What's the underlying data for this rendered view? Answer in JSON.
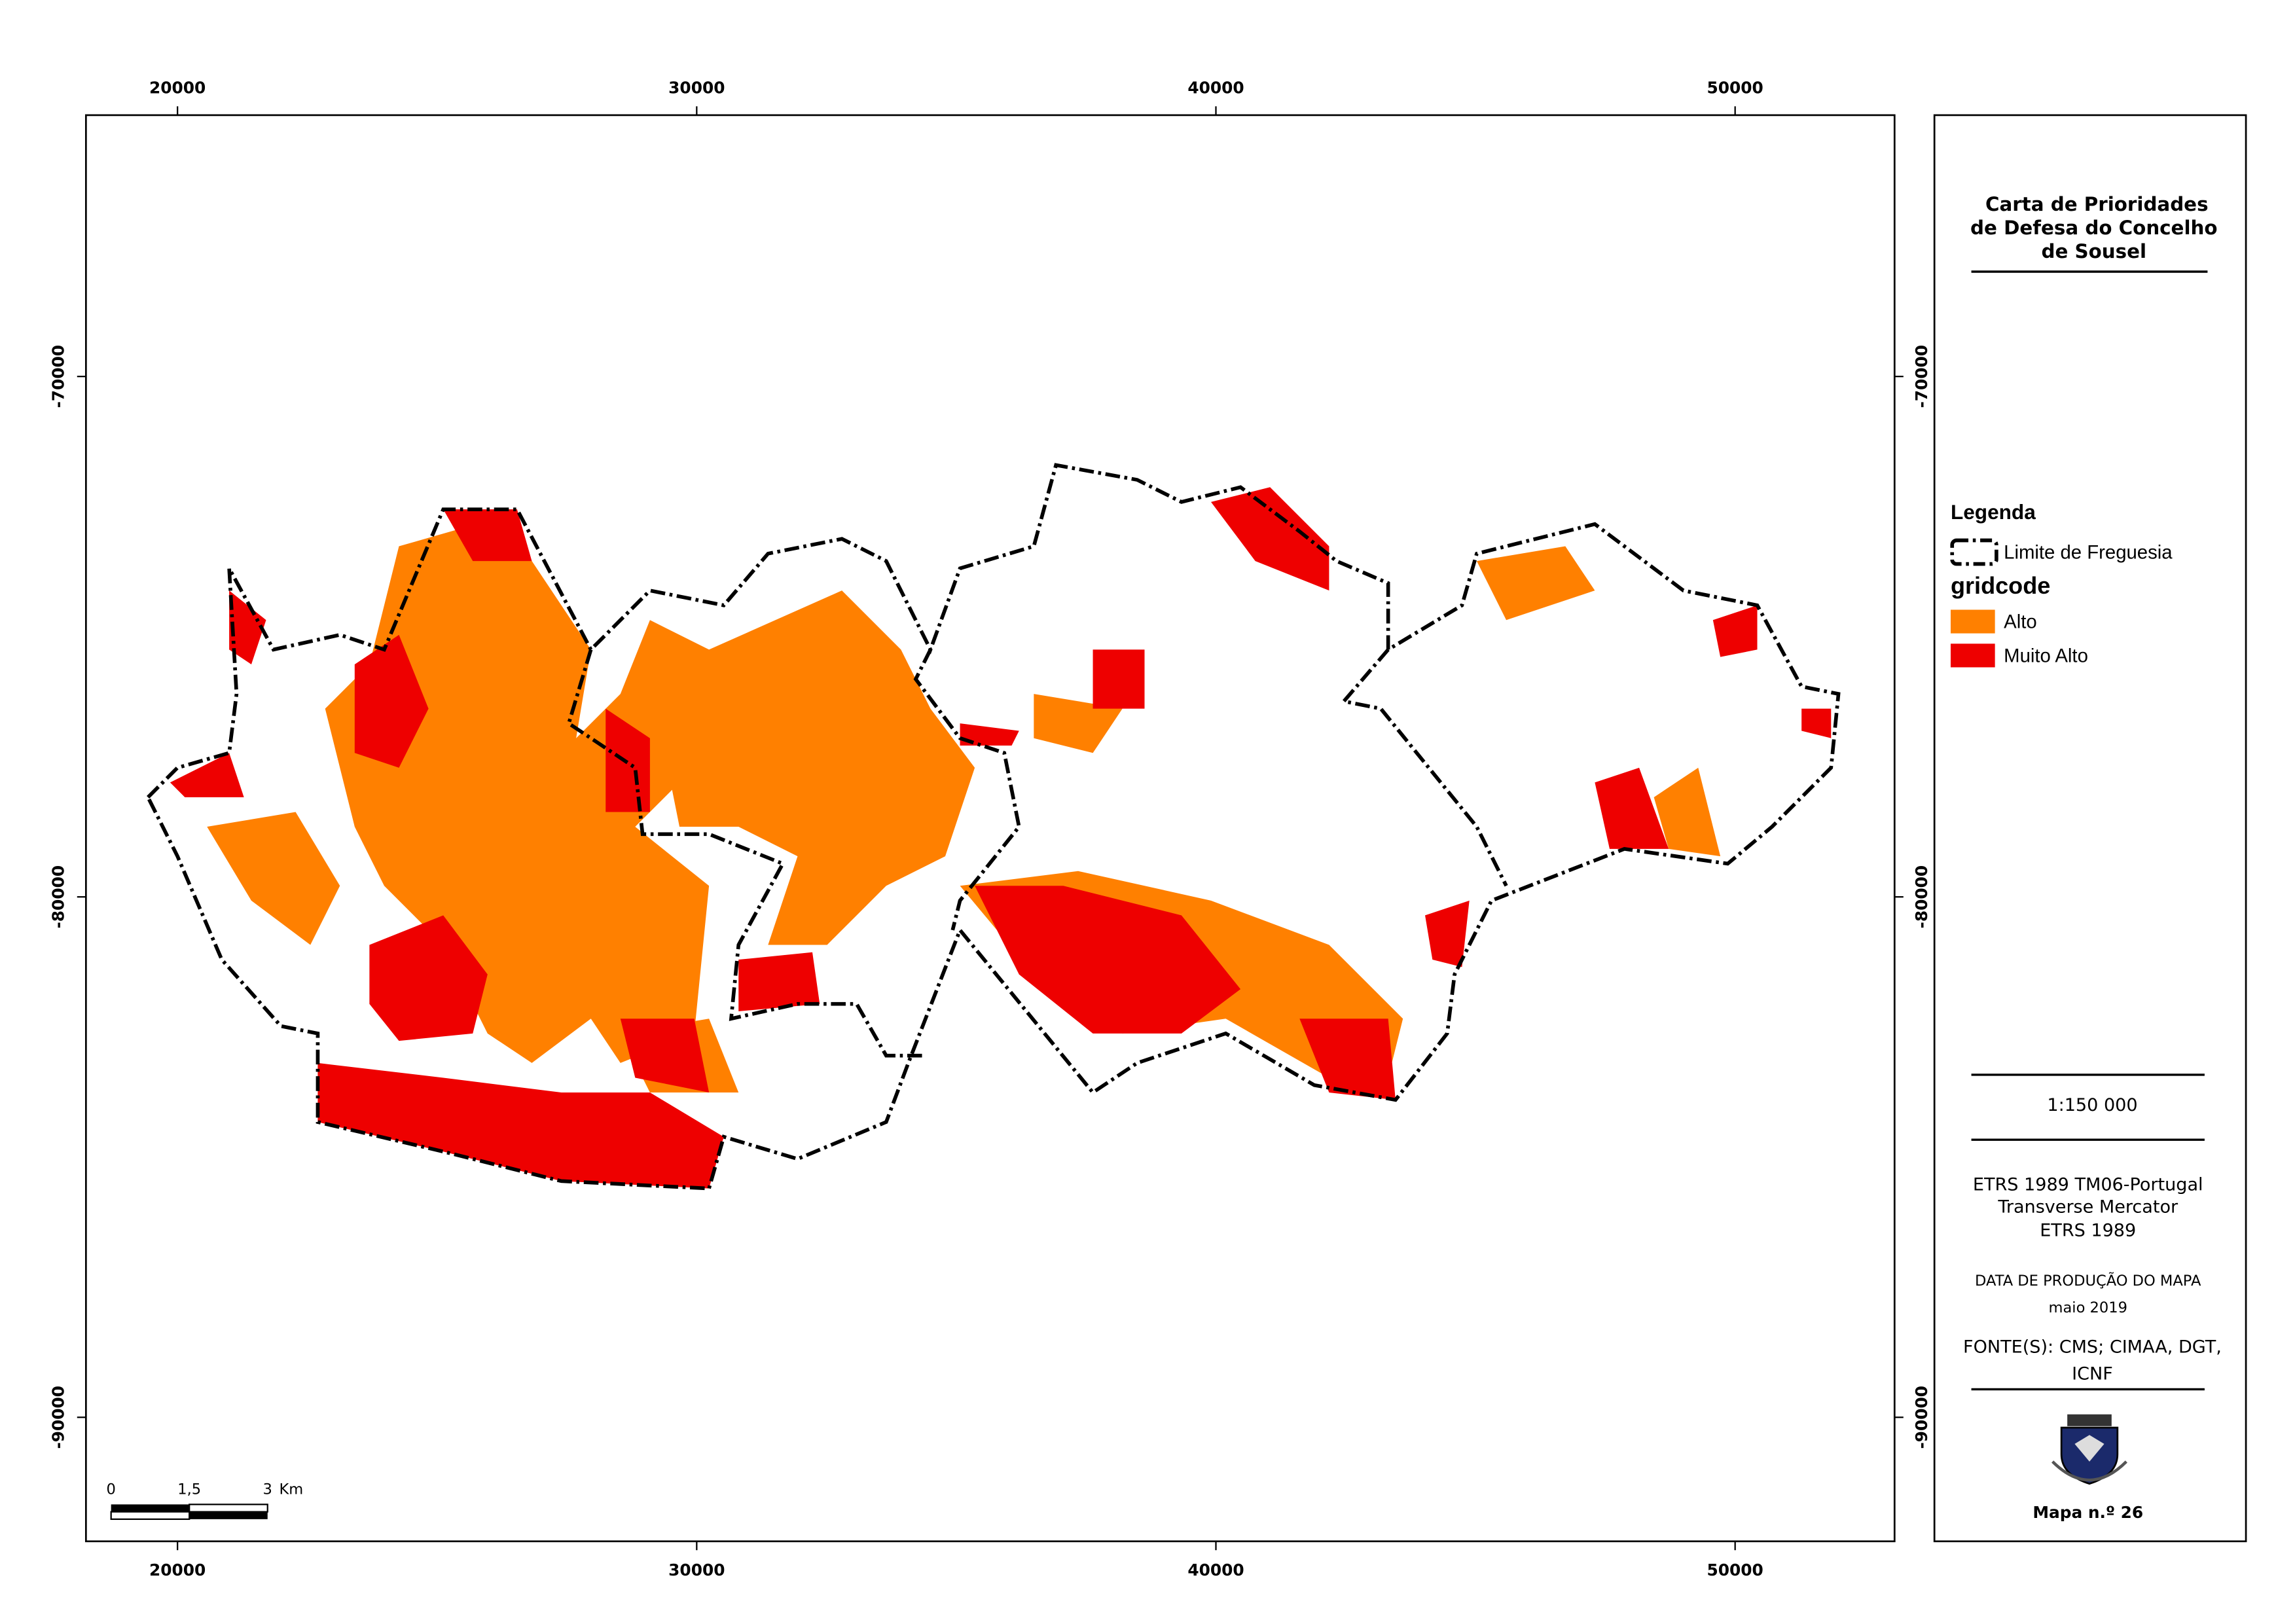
{
  "map": {
    "x_ticks": [
      20000,
      30000,
      40000,
      50000
    ],
    "y_ticks": [
      -70000,
      -80000,
      -90000
    ],
    "scale_bar": {
      "labels": [
        "0",
        "1,5",
        "3"
      ],
      "unit": "Km"
    }
  },
  "panel": {
    "title": [
      "Carta de Prioridades",
      "de Defesa do Concelho",
      "de Sousel"
    ],
    "legend": {
      "heading": "Legenda",
      "boundary": "Limite de Freguesia",
      "field": "gridcode",
      "classes": [
        {
          "label": "Alto",
          "color": "#ff8000"
        },
        {
          "label": "Muito Alto",
          "color": "#ee0000"
        }
      ]
    },
    "scale": "1:150 000",
    "projection": [
      "ETRS 1989 TM06-Portugal",
      "Transverse Mercator",
      "ETRS 1989"
    ],
    "date_heading": "DATA DE PRODUÇÃO DO MAPA",
    "date": "maio 2019",
    "sources": [
      "FONTE(S): CMS; CIMAA, DGT,",
      "ICNF"
    ],
    "map_number": "Mapa n.º 26"
  }
}
